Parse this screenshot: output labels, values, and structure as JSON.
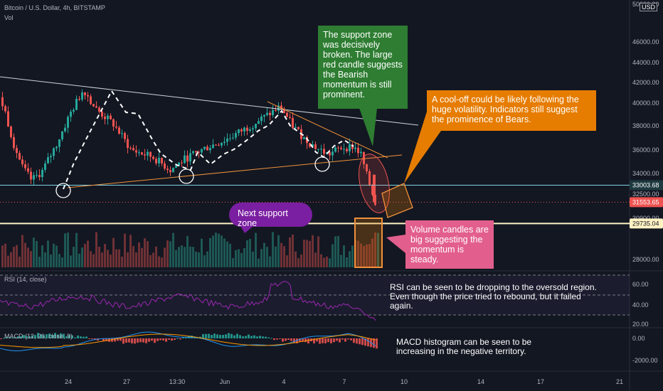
{
  "header": {
    "title": "Bitcoin / U.S. Dollar, 4h, BITSTAMP",
    "vol_label": "Vol",
    "rsi_label": "RSI (14, close)",
    "macd_label": "MACD (12, 26, close, 9)",
    "currency": "USD"
  },
  "price_axis": {
    "labels": [
      "46000.00",
      "44000.00",
      "42000.00",
      "40000.00",
      "38000.00",
      "36000.00",
      "34000.00",
      "32500.00",
      "30900.00",
      "28000.00"
    ],
    "top_label": "50000.00"
  },
  "rsi_axis": [
    "60.00",
    "40.00",
    "20.00"
  ],
  "macd_axis": [
    "0.00",
    "-2000.00"
  ],
  "x_axis": [
    "24",
    "27",
    "13:30",
    "Jun",
    "4",
    "7",
    "10",
    "14",
    "17",
    "21"
  ],
  "price_tags": {
    "current": "33003.68",
    "last": "31553.65",
    "support": "29735.04"
  },
  "colors": {
    "bull": "#26a69a",
    "bear": "#ef5350",
    "support_line": "#fff3c4",
    "trend_orange": "#f0913a",
    "trend_white": "#cfd2d9",
    "rsi": "#9c27b0",
    "macd": "#2196f3",
    "signal": "#ff9800"
  },
  "annotations": {
    "green": "The support zone was decisively broken. The large red candle suggests the Bearish momentum is still prominent.",
    "orange": "A cool-off could be likely following the huge volatility. Indicators still suggest the prominence of Bears.",
    "purple": "Next support zone",
    "pink": "Volume candles are big suggesting the momentum is steady.",
    "rsi_note": "RSI can be seen to be dropping to the oversold region. Even though the price tried to rebound, but it failed again.",
    "macd_note": "MACD histogram can be seen to be increasing in the negative territory."
  },
  "chart_data": {
    "type": "candlestick",
    "title": "Bitcoin / U.S. Dollar, 4h, BITSTAMP",
    "x": [
      "24",
      "27",
      "13:30",
      "Jun",
      "4",
      "7",
      "10",
      "14",
      "17",
      "21"
    ],
    "ylim": [
      27000,
      47000
    ],
    "key_levels": {
      "current": 33003.68,
      "last": 31553.65,
      "support": 29735.04
    },
    "swing_path": [
      {
        "x": "24",
        "price": 33300
      },
      {
        "x": "27",
        "price": 41200
      },
      {
        "x": "13:30",
        "price": 34300
      },
      {
        "x": "Jun",
        "price": 35300
      },
      {
        "x": "4",
        "price": 39700
      },
      {
        "x": "7",
        "price": 35600
      },
      {
        "x": "7",
        "price": 36500
      }
    ],
    "series": [
      {
        "name": "RSI (14, close)",
        "levels": [
          70,
          50,
          30
        ],
        "ylim": [
          20,
          70
        ]
      },
      {
        "name": "MACD (12, 26, close, 9)",
        "ylim": [
          -2500,
          600
        ]
      }
    ]
  }
}
